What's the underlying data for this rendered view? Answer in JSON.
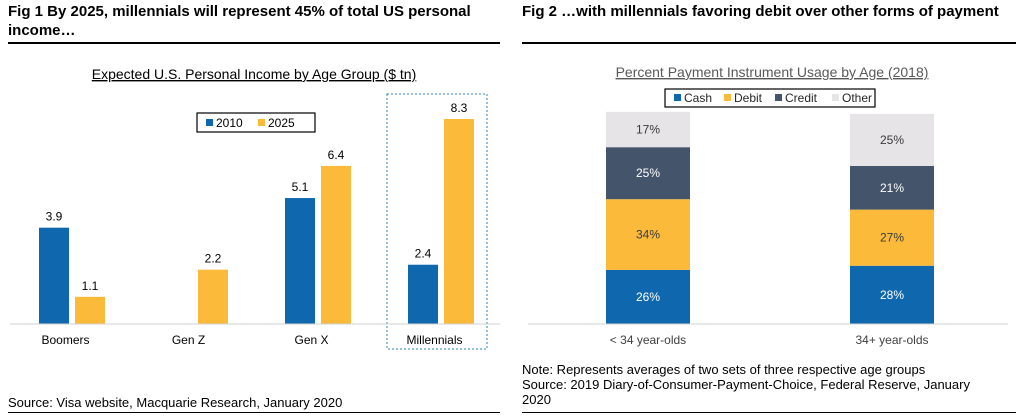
{
  "fig1": {
    "title": "Fig 1    By 2025, millennials will represent 45% of total US personal income…",
    "source": "Source: Visa website, Macquarie Research, January 2020"
  },
  "fig2": {
    "title": "Fig 2    …with millennials favoring debit over other forms of payment",
    "note": "Note: Represents averages of two sets of three respective age groups",
    "source": "Source: 2019 Diary-of-Consumer-Payment-Choice, Federal Reserve, January 2020"
  },
  "chart_data": [
    {
      "type": "bar",
      "title": "Expected U.S. Personal Income by Age Group ($ tn)",
      "xlabel": "",
      "ylabel": "",
      "categories": [
        "Boomers",
        "Gen Z",
        "Gen X",
        "Millennials"
      ],
      "series": [
        {
          "name": "2010",
          "values": [
            3.9,
            null,
            5.1,
            2.4
          ],
          "value_labels": [
            "3.9",
            "",
            "5.1",
            "2.4"
          ],
          "color": "#0F68AE"
        },
        {
          "name": "2025",
          "values": [
            1.1,
            2.2,
            6.4,
            8.3
          ],
          "value_labels": [
            "1.1",
            "2.2",
            "6.4",
            "8.3"
          ],
          "color": "#FBBA3A"
        }
      ],
      "ylim": [
        0,
        8.3
      ],
      "grid": false,
      "legend": "top-center",
      "highlight_category": "Millennials"
    },
    {
      "type": "bar",
      "stacked": true,
      "title": "Percent Payment Instrument  Usage by Age (2018)",
      "xlabel": "",
      "ylabel": "",
      "categories": [
        "< 34 year-olds",
        "34+ year-olds"
      ],
      "series": [
        {
          "name": "Cash",
          "values": [
            26,
            28
          ],
          "value_labels": [
            "26%",
            "28%"
          ],
          "color": "#0F68AE",
          "label_color": "#ffffff"
        },
        {
          "name": "Debit",
          "values": [
            34,
            27
          ],
          "value_labels": [
            "34%",
            "27%"
          ],
          "color": "#FBBA3A",
          "label_color": "#3a3a3a"
        },
        {
          "name": "Credit",
          "values": [
            25,
            21
          ],
          "value_labels": [
            "25%",
            "21%"
          ],
          "color": "#44546A",
          "label_color": "#ffffff"
        },
        {
          "name": "Other",
          "values": [
            17,
            25
          ],
          "value_labels": [
            "17%",
            "25%"
          ],
          "color": "#E6E4E6",
          "label_color": "#3a3a3a"
        }
      ],
      "ylim": [
        0,
        100
      ],
      "grid": false,
      "legend": "top-center"
    }
  ]
}
